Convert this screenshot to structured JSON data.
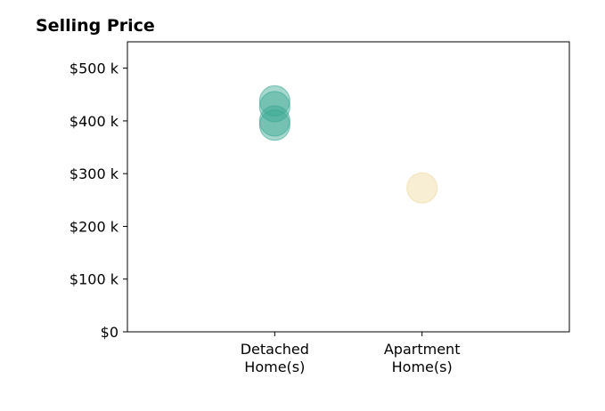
{
  "chart_data": {
    "type": "scatter",
    "title": "Selling Price",
    "xlabel": "",
    "ylabel": "",
    "categories": [
      "Detached\nHome(s)",
      "Apartment\nHome(s)"
    ],
    "xlim": [
      -1,
      2
    ],
    "ylim": [
      0,
      550000
    ],
    "yticks": [
      {
        "value": 0,
        "label": "$0"
      },
      {
        "value": 100000,
        "label": "$100 k"
      },
      {
        "value": 200000,
        "label": "$200 k"
      },
      {
        "value": 300000,
        "label": "$300 k"
      },
      {
        "value": 400000,
        "label": "$400 k"
      },
      {
        "value": 500000,
        "label": "$500 k"
      }
    ],
    "grid": false,
    "series": [
      {
        "category": "Detached\nHome(s)",
        "color": "#3aa893",
        "values": [
          438000,
          427000,
          400000,
          392000
        ]
      },
      {
        "category": "Apartment\nHome(s)",
        "color": "#f0d9a0",
        "values": [
          273000
        ]
      }
    ]
  }
}
